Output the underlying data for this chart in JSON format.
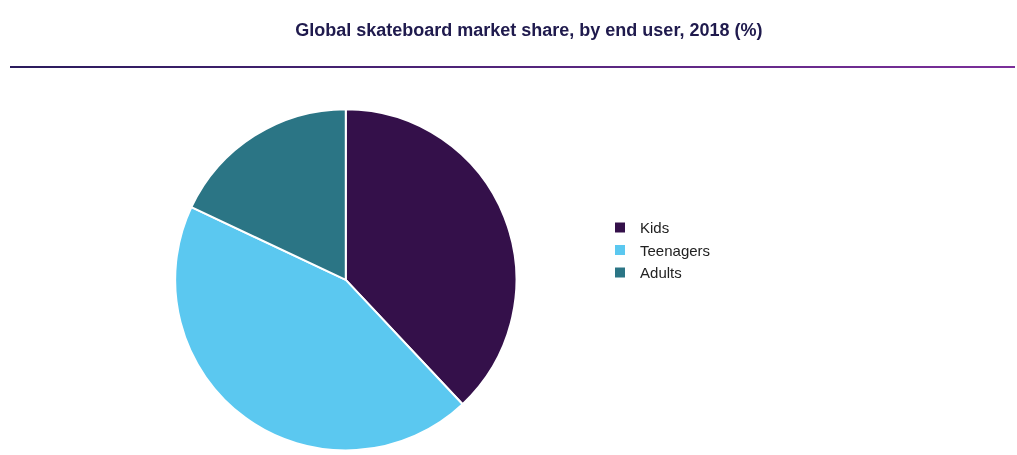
{
  "chart_data": {
    "type": "pie",
    "title": "Global skateboard market share, by end user, 2018 (%)",
    "categories": [
      "Kids",
      "Teenagers",
      "Adults"
    ],
    "values": [
      38,
      44,
      18
    ],
    "colors": [
      "#34104a",
      "#5bc8f0",
      "#2b7585"
    ],
    "legend": "right"
  }
}
